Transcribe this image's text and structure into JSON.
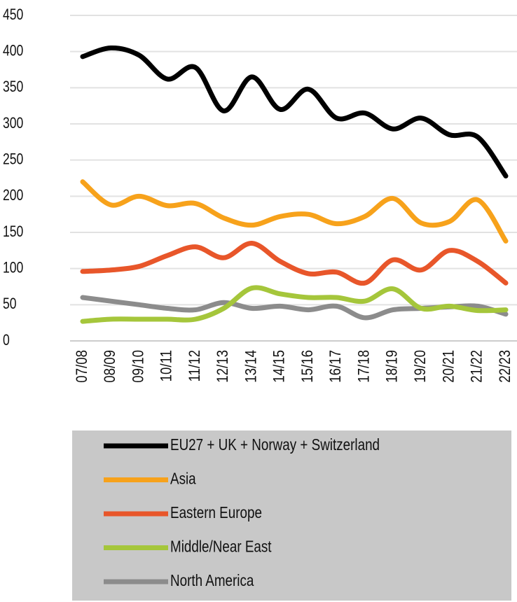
{
  "chart_data": {
    "type": "line",
    "categories": [
      "07/08",
      "08/09",
      "09/10",
      "10/11",
      "11/12",
      "12/13",
      "13/14",
      "14/15",
      "15/16",
      "16/17",
      "17/18",
      "18/19",
      "19/20",
      "20/21",
      "21/22",
      "22/23"
    ],
    "series": [
      {
        "name": "EU27 + UK + Norway + Switzerland",
        "color": "#000000",
        "values": [
          393,
          405,
          395,
          362,
          378,
          318,
          365,
          320,
          348,
          308,
          315,
          293,
          308,
          285,
          282,
          228
        ]
      },
      {
        "name": "Asia",
        "color": "#f7a21b",
        "values": [
          220,
          188,
          200,
          187,
          190,
          170,
          160,
          172,
          175,
          162,
          172,
          197,
          163,
          165,
          195,
          138
        ]
      },
      {
        "name": "Eastern Europe",
        "color": "#e8562a",
        "values": [
          96,
          98,
          103,
          118,
          130,
          115,
          135,
          110,
          93,
          95,
          80,
          112,
          98,
          125,
          110,
          80
        ]
      },
      {
        "name": "Middle/Near East",
        "color": "#a5c63b",
        "values": [
          27,
          30,
          30,
          30,
          30,
          45,
          73,
          65,
          60,
          60,
          55,
          72,
          45,
          48,
          42,
          43
        ]
      },
      {
        "name": "North America",
        "color": "#8c8c8c",
        "values": [
          60,
          55,
          50,
          45,
          43,
          53,
          45,
          48,
          43,
          48,
          32,
          43,
          45,
          47,
          48,
          37
        ]
      }
    ],
    "ylim": [
      0,
      450
    ],
    "yticks": [
      0,
      50,
      100,
      150,
      200,
      250,
      300,
      350,
      400,
      450
    ],
    "grid": true
  }
}
